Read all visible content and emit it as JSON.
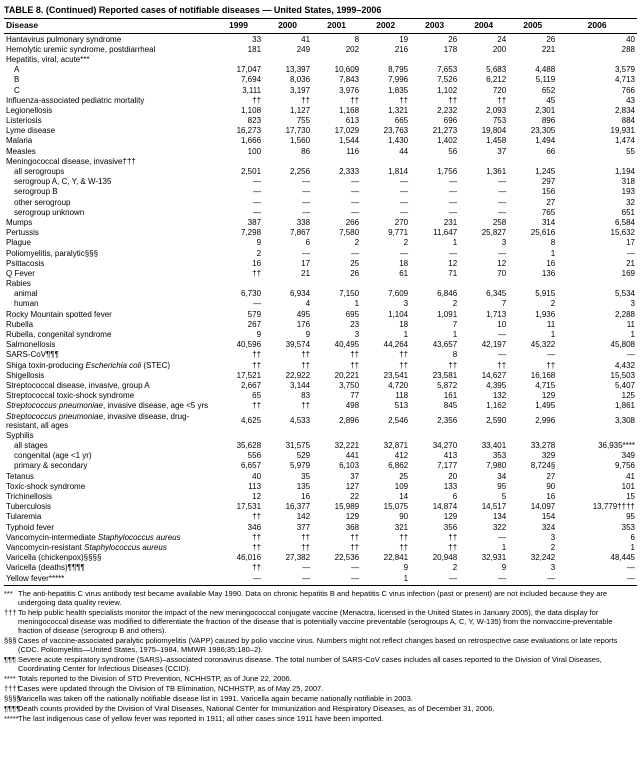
{
  "title": "TABLE 8. (Continued) Reported cases of notifiable diseases — United States, 1999–2006",
  "columns": [
    "Disease",
    "1999",
    "2000",
    "2001",
    "2002",
    "2003",
    "2004",
    "2005",
    "2006"
  ],
  "rows": [
    {
      "l": "Hantavirus pulmonary syndrome",
      "v": [
        "33",
        "41",
        "8",
        "19",
        "26",
        "24",
        "26",
        "40"
      ]
    },
    {
      "l": "Hemolytic uremic syndrome, postdiarrheal",
      "v": [
        "181",
        "249",
        "202",
        "216",
        "178",
        "200",
        "221",
        "288"
      ]
    },
    {
      "l": "Hepatitis, viral, acute***",
      "v": [
        "",
        "",
        "",
        "",
        "",
        "",
        "",
        ""
      ]
    },
    {
      "l": "A",
      "i": 1,
      "v": [
        "17,047",
        "13,397",
        "10,609",
        "8,795",
        "7,653",
        "5,683",
        "4,488",
        "3,579"
      ]
    },
    {
      "l": "B",
      "i": 1,
      "v": [
        "7,694",
        "8,036",
        "7,843",
        "7,996",
        "7,526",
        "6,212",
        "5,119",
        "4,713"
      ]
    },
    {
      "l": "C",
      "i": 1,
      "v": [
        "3,111",
        "3,197",
        "3,976",
        "1,835",
        "1,102",
        "720",
        "652",
        "766"
      ]
    },
    {
      "l": "Influenza-associated pediatric mortality",
      "v": [
        "††",
        "††",
        "††",
        "††",
        "††",
        "††",
        "45",
        "43"
      ]
    },
    {
      "l": "Legionellosis",
      "v": [
        "1,108",
        "1,127",
        "1,168",
        "1,321",
        "2,232",
        "2,093",
        "2,301",
        "2,834"
      ]
    },
    {
      "l": "Listeriosis",
      "v": [
        "823",
        "755",
        "613",
        "665",
        "696",
        "753",
        "896",
        "884"
      ]
    },
    {
      "l": "Lyme disease",
      "v": [
        "16,273",
        "17,730",
        "17,029",
        "23,763",
        "21,273",
        "19,804",
        "23,305",
        "19,931"
      ]
    },
    {
      "l": "Malaria",
      "v": [
        "1,666",
        "1,560",
        "1,544",
        "1,430",
        "1,402",
        "1,458",
        "1,494",
        "1,474"
      ]
    },
    {
      "l": "Measles",
      "v": [
        "100",
        "86",
        "116",
        "44",
        "56",
        "37",
        "66",
        "55"
      ]
    },
    {
      "l": "Meningococcal disease, invasive†††",
      "v": [
        "",
        "",
        "",
        "",
        "",
        "",
        "",
        ""
      ]
    },
    {
      "l": "all serogroups",
      "i": 1,
      "v": [
        "2,501",
        "2,256",
        "2,333",
        "1,814",
        "1,756",
        "1,361",
        "1,245",
        "1,194"
      ]
    },
    {
      "l": "serogroup A, C, Y, & W-135",
      "i": 1,
      "v": [
        "—",
        "—",
        "—",
        "—",
        "—",
        "—",
        "297",
        "318"
      ]
    },
    {
      "l": "serogroup B",
      "i": 1,
      "v": [
        "—",
        "—",
        "—",
        "—",
        "—",
        "—",
        "156",
        "193"
      ]
    },
    {
      "l": "other serogroup",
      "i": 1,
      "v": [
        "—",
        "—",
        "—",
        "—",
        "—",
        "—",
        "27",
        "32"
      ]
    },
    {
      "l": "serogroup unknown",
      "i": 1,
      "v": [
        "—",
        "—",
        "—",
        "—",
        "—",
        "—",
        "765",
        "651"
      ]
    },
    {
      "l": "Mumps",
      "v": [
        "387",
        "338",
        "266",
        "270",
        "231",
        "258",
        "314",
        "6,584"
      ]
    },
    {
      "l": "Pertussis",
      "v": [
        "7,298",
        "7,867",
        "7,580",
        "9,771",
        "11,647",
        "25,827",
        "25,616",
        "15,632"
      ]
    },
    {
      "l": "Plague",
      "v": [
        "9",
        "6",
        "2",
        "2",
        "1",
        "3",
        "8",
        "17"
      ]
    },
    {
      "l": "Poliomyelitis, paralytic§§§",
      "v": [
        "2",
        "—",
        "—",
        "—",
        "—",
        "—",
        "1",
        "—"
      ]
    },
    {
      "l": "Psittacosis",
      "v": [
        "16",
        "17",
        "25",
        "18",
        "12",
        "12",
        "16",
        "21"
      ]
    },
    {
      "l": "Q Fever",
      "v": [
        "††",
        "21",
        "26",
        "61",
        "71",
        "70",
        "136",
        "169"
      ]
    },
    {
      "l": "Rabies",
      "v": [
        "",
        "",
        "",
        "",
        "",
        "",
        "",
        ""
      ]
    },
    {
      "l": "animal",
      "i": 1,
      "v": [
        "6,730",
        "6,934",
        "7,150",
        "7,609",
        "6,846",
        "6,345",
        "5,915",
        "5,534"
      ]
    },
    {
      "l": "human",
      "i": 1,
      "v": [
        "—",
        "4",
        "1",
        "3",
        "2",
        "7",
        "2",
        "3"
      ]
    },
    {
      "l": "Rocky Mountain spotted fever",
      "v": [
        "579",
        "495",
        "695",
        "1,104",
        "1,091",
        "1,713",
        "1,936",
        "2,288"
      ]
    },
    {
      "l": "Rubella",
      "v": [
        "267",
        "176",
        "23",
        "18",
        "7",
        "10",
        "11",
        "11"
      ]
    },
    {
      "l": "Rubella, congenital syndrome",
      "v": [
        "9",
        "9",
        "3",
        "1",
        "1",
        "—",
        "1",
        "1"
      ]
    },
    {
      "l": "Salmonellosis",
      "v": [
        "40,596",
        "39,574",
        "40,495",
        "44,264",
        "43,657",
        "42,197",
        "45,322",
        "45,808"
      ]
    },
    {
      "l": "SARS-CoV¶¶¶",
      "v": [
        "††",
        "††",
        "††",
        "††",
        "8",
        "—",
        "—",
        "—"
      ]
    },
    {
      "l": "Shiga toxin-producing Escherichia coli (STEC)",
      "it": 1,
      "v": [
        "††",
        "††",
        "††",
        "††",
        "††",
        "††",
        "††",
        "4,432"
      ]
    },
    {
      "l": "Shigellosis",
      "v": [
        "17,521",
        "22,922",
        "20,221",
        "23,541",
        "23,581",
        "14,627",
        "16,168",
        "15,503"
      ]
    },
    {
      "l": "Streptococcal disease, invasive, group A",
      "v": [
        "2,667",
        "3,144",
        "3,750",
        "4,720",
        "5,872",
        "4,395",
        "4,715",
        "5,407"
      ]
    },
    {
      "l": "Streptococcal toxic-shock syndrome",
      "v": [
        "65",
        "83",
        "77",
        "118",
        "161",
        "132",
        "129",
        "125"
      ]
    },
    {
      "l": "Streptococcus pneumoniae, invasive disease, age <5 yrs",
      "it": 1,
      "v": [
        "††",
        "††",
        "498",
        "513",
        "845",
        "1,162",
        "1,495",
        "1,861"
      ]
    },
    {
      "l": "Streptococcus pneumoniae, invasive disease, drug-resistant, all ages",
      "it": 1,
      "v": [
        "4,625",
        "4,533",
        "2,896",
        "2,546",
        "2,356",
        "2,590",
        "2,996",
        "3,308"
      ]
    },
    {
      "l": "Syphilis",
      "v": [
        "",
        "",
        "",
        "",
        "",
        "",
        "",
        ""
      ]
    },
    {
      "l": "all stages",
      "i": 1,
      "v": [
        "35,628",
        "31,575",
        "32,221",
        "32,871",
        "34,270",
        "33,401",
        "33,278",
        "36,935****"
      ]
    },
    {
      "l": "congenital (age <1 yr)",
      "i": 1,
      "v": [
        "556",
        "529",
        "441",
        "412",
        "413",
        "353",
        "329",
        "349"
      ]
    },
    {
      "l": "primary & secondary",
      "i": 1,
      "v": [
        "6,657",
        "5,979",
        "6,103",
        "6,862",
        "7,177",
        "7,980",
        "8,724§",
        "9,756"
      ]
    },
    {
      "l": "Tetanus",
      "v": [
        "40",
        "35",
        "37",
        "25",
        "20",
        "34",
        "27",
        "41"
      ]
    },
    {
      "l": "Toxic-shock syndrome",
      "v": [
        "113",
        "135",
        "127",
        "109",
        "133",
        "95",
        "90",
        "101"
      ]
    },
    {
      "l": "Trichinellosis",
      "v": [
        "12",
        "16",
        "22",
        "14",
        "6",
        "5",
        "16",
        "15"
      ]
    },
    {
      "l": "Tuberculosis",
      "v": [
        "17,531",
        "16,377",
        "15,989",
        "15,075",
        "14,874",
        "14,517",
        "14,097",
        "13,779††††"
      ]
    },
    {
      "l": "Tularemia",
      "v": [
        "††",
        "142",
        "129",
        "90",
        "129",
        "134",
        "154",
        "95"
      ]
    },
    {
      "l": "Typhoid fever",
      "v": [
        "346",
        "377",
        "368",
        "321",
        "356",
        "322",
        "324",
        "353"
      ]
    },
    {
      "l": "Vancomycin-intermediate Staphylococcus aureus",
      "it": 1,
      "v": [
        "††",
        "††",
        "††",
        "††",
        "††",
        "—",
        "3",
        "6"
      ]
    },
    {
      "l": "Vancomycin-resistant Staphylococcus aureus",
      "it": 1,
      "v": [
        "††",
        "††",
        "††",
        "††",
        "††",
        "1",
        "2",
        "1"
      ]
    },
    {
      "l": "Varicella (chickenpox)§§§§",
      "v": [
        "46,016",
        "27,382",
        "22,536",
        "22,841",
        "20,948",
        "32,931",
        "32,242",
        "48,445"
      ]
    },
    {
      "l": "Varicella (deaths)¶¶¶¶",
      "v": [
        "††",
        "—",
        "—",
        "9",
        "2",
        "9",
        "3",
        "—"
      ]
    },
    {
      "l": "Yellow fever*****",
      "v": [
        "—",
        "—",
        "—",
        "1",
        "—",
        "—",
        "—",
        "—"
      ]
    }
  ],
  "footnotes": [
    {
      "m": "***",
      "t": "The anti-hepatitis C virus antibody test became available May 1990. Data on chronic hepatitis B and hepatitis C virus infection (past or present) are not included because they are undergoing data quality review."
    },
    {
      "m": "†††",
      "t": "To help public health specialists monitor the impact of the new meningococcal conjugate vaccine (Menactra, licensed in the United States in January 2005), the data display for meningococcal disease was modified to differentiate the fraction of the disease that is potentially vaccine preventable (serogroups A, C, Y, W-135) from the nonvaccine-preventable fraction of disease (serogroup B and others)."
    },
    {
      "m": "§§§",
      "t": "Cases of vaccine-associated paralytic poliomyelitis (VAPP) caused by polio vaccine virus. Numbers might not reflect changes based on retrospective case evaluations or late reports (CDC. Poliomyelitis—United States, 1975–1984. MMWR 1986;35:180–2)."
    },
    {
      "m": "¶¶¶",
      "t": "Severe acute respiratory syndrome (SARS)–associated coronavirus disease. The total number of SARS-CoV cases includes all cases reported to the Division of Viral Diseases, Coordinating Center for Infectious Diseases (CCID)."
    },
    {
      "m": "****",
      "t": "Totals reported to the Division of STD Prevention, NCHHSTP, as of June 22, 2006."
    },
    {
      "m": "††††",
      "t": "Cases were updated through the Division of TB Elimination, NCHHSTP, as of May 25, 2007."
    },
    {
      "m": "§§§§",
      "t": "Varicella was taken off the nationally notifiable disease list in 1991. Varicella again became nationally notifiable in 2003."
    },
    {
      "m": "¶¶¶¶",
      "t": "Death counts provided by the Division of Viral Diseases, National Center for Immunization and Respiratory Diseases, as of December 31, 2006."
    },
    {
      "m": "*****",
      "t": "The last indigenous case of yellow fever was reported in 1911; all other cases since 1911 have been imported."
    }
  ]
}
